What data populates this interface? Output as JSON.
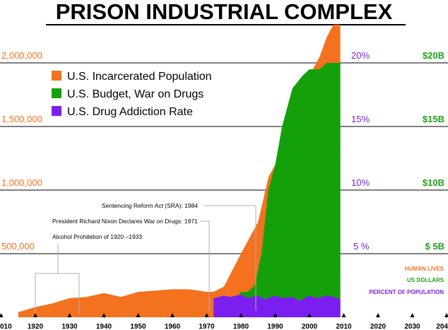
{
  "chart_data": {
    "type": "area",
    "title": "PRISON INDUSTRIAL COMPLEX",
    "x": [
      1920,
      1925,
      1930,
      1935,
      1940,
      1945,
      1950,
      1955,
      1960,
      1965,
      1970,
      1975,
      1980,
      1985,
      1990,
      1995,
      2000,
      2005,
      2007,
      2008
    ],
    "y_left_ticks": [
      "500,000",
      "1,000,000",
      "1,500,000",
      "2,000,000"
    ],
    "y_mid_ticks": [
      "5 %",
      "10%",
      "15%",
      "20%"
    ],
    "y_right_ticks": [
      "$ 5B",
      "$10B",
      "$15B",
      "$20B"
    ],
    "x_ticks": [
      "010",
      "1920",
      "1930",
      "1940",
      "1950",
      "1960",
      "1970",
      "1980",
      "1990",
      "2000",
      "2010",
      "2020",
      "2030",
      "204"
    ],
    "series": [
      {
        "name": "U.S. Incarcerated Population",
        "color": "#f4711f",
        "x": [
          1915,
          1920,
          1925,
          1930,
          1935,
          1940,
          1945,
          1950,
          1955,
          1960,
          1965,
          1970,
          1972,
          1975,
          1980,
          1985,
          1988,
          1990,
          1992,
          1995,
          2000,
          2003,
          2005,
          2007,
          2009
        ],
        "values": [
          40000,
          80000,
          110000,
          150000,
          160000,
          190000,
          160000,
          200000,
          210000,
          220000,
          220000,
          200000,
          200000,
          240000,
          500000,
          750000,
          1100000,
          1200000,
          1300000,
          1500000,
          1900000,
          2050000,
          2200000,
          2300000,
          2300000
        ]
      },
      {
        "name": "U.S. Budget, War on Drugs",
        "color": "#13a00b",
        "x": [
          1978,
          1980,
          1982,
          1984,
          1986,
          1988,
          1989,
          1990,
          1992,
          1995,
          1998,
          2000,
          2003,
          2005,
          2008,
          2009
        ],
        "values": [
          100000,
          200000,
          200000,
          250000,
          500000,
          1000000,
          1100000,
          1200000,
          1500000,
          1800000,
          1900000,
          1950000,
          1950000,
          2000000,
          2000000,
          2000000
        ]
      },
      {
        "name": "U.S. Drug Addiction Rate",
        "color": "#7a1ff0",
        "x": [
          1972,
          1975,
          1977,
          1980,
          1982,
          1985,
          1987,
          1990,
          1992,
          1995,
          1997,
          2000,
          2002,
          2005,
          2007,
          2009
        ],
        "values": [
          150000,
          170000,
          160000,
          180000,
          150000,
          170000,
          140000,
          170000,
          150000,
          160000,
          130000,
          170000,
          150000,
          170000,
          160000,
          140000
        ]
      }
    ],
    "legend": [
      "U.S. Incarcerated Population",
      "U.S. Budget, War on Drugs",
      "U.S. Drug Addiction Rate"
    ],
    "annotations": [
      "Sentencing Reform Act (SRA): 1984",
      "President Richard Nixon Declares War on Drugs: 1971",
      "Alcohol Prohibition of 1920 –1933"
    ],
    "notes": {
      "human_lives": "HUMAN LIVES",
      "us_dollars": "US DOLLARS",
      "percent": "PERCENT OF POPULATION"
    },
    "colors": {
      "orange": "#f4711f",
      "green": "#13a00b",
      "purple": "#7a1ff0"
    }
  }
}
